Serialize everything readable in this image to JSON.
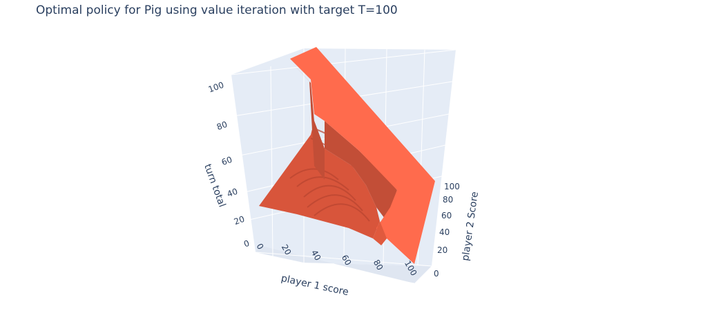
{
  "title": "Optimal policy for Pig using value iteration with target T=100",
  "colors": {
    "surface_top": "#ff6b4d",
    "surface_front": "#e05a3e",
    "surface_side": "#c8523a",
    "pane": "#e5ecf6",
    "grid": "#ffffff",
    "text": "#2a3f5f"
  },
  "chart_data": {
    "type": "surface",
    "title": "Optimal policy for Pig using value iteration with target T=100",
    "x_axis": {
      "label": "player 1 score",
      "range": [
        0,
        100
      ],
      "ticks": [
        "0",
        "20",
        "40",
        "60",
        "80",
        "100"
      ]
    },
    "y_axis": {
      "label": "player 2 Score",
      "range": [
        0,
        100
      ],
      "ticks": [
        "0",
        "20",
        "40",
        "60",
        "80",
        "100"
      ]
    },
    "z_axis": {
      "label": "turn total",
      "range": [
        0,
        100
      ],
      "ticks": [
        "0",
        "20",
        "40",
        "60",
        "80",
        "100"
      ]
    },
    "surface": {
      "description_values": {
        "x": [
          0,
          20,
          40,
          60,
          80,
          90,
          95,
          100
        ],
        "z_at_y0": [
          21,
          22,
          23,
          24,
          21,
          12,
          5,
          0
        ],
        "z_at_y80": [
          28,
          33,
          45,
          60,
          40,
          20,
          10,
          0
        ],
        "z_at_y100": [
          100,
          100,
          100,
          100,
          100,
          100,
          100,
          100
        ]
      }
    },
    "grid": true,
    "legend": "none"
  }
}
